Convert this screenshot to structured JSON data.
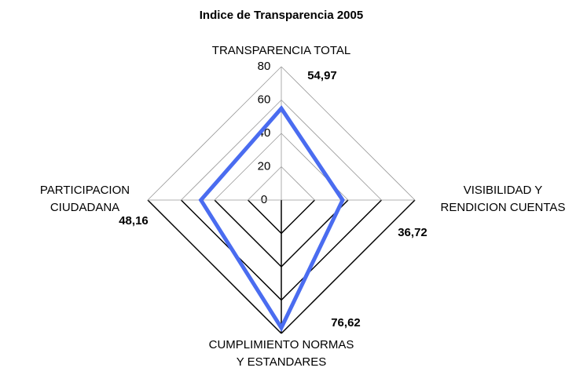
{
  "chart_data": {
    "type": "radar",
    "title": "Indice de Transparencia 2005",
    "categories": [
      [
        "TRANSPARENCIA TOTAL"
      ],
      [
        "VISIBILIDAD Y",
        "RENDICION CUENTAS"
      ],
      [
        "CUMPLIMIENTO NORMAS",
        "Y ESTANDARES"
      ],
      [
        "PARTICIPACION",
        "CIUDADANA"
      ]
    ],
    "series": [
      {
        "name": null,
        "color": "#4a6cf0",
        "values": [
          54.97,
          36.72,
          76.62,
          48.16
        ],
        "value_labels": [
          "54,97",
          "36,72",
          "76,62",
          "48,16"
        ]
      }
    ],
    "rlim": [
      0,
      80
    ],
    "rticks": [
      0,
      20,
      40,
      60,
      80
    ],
    "grid": true
  }
}
